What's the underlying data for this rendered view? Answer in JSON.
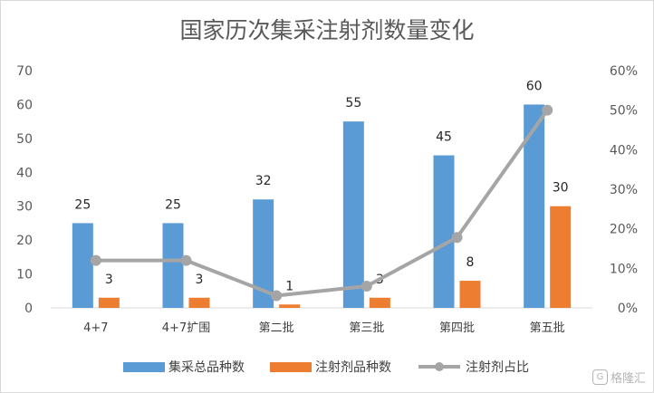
{
  "chart_data": {
    "type": "bar",
    "title": "国家历次集采注射剂数量变化",
    "categories": [
      "4+7",
      "4+7扩围",
      "第二批",
      "第三批",
      "第四批",
      "第五批"
    ],
    "series": [
      {
        "name": "集采总品种数",
        "kind": "bar",
        "axis": "left",
        "color": "#5b9bd5",
        "values": [
          25,
          25,
          32,
          55,
          45,
          60
        ],
        "labels": [
          "25",
          "25",
          "32",
          "55",
          "45",
          "60"
        ]
      },
      {
        "name": "注射剂品种数",
        "kind": "bar",
        "axis": "left",
        "color": "#ed7d31",
        "values": [
          3,
          3,
          1,
          3,
          8,
          30
        ],
        "labels": [
          "3",
          "3",
          "1",
          "3",
          "8",
          "30"
        ]
      },
      {
        "name": "注射剂占比",
        "kind": "line",
        "axis": "right",
        "color": "#a5a5a5",
        "values": [
          12,
          12,
          3.1,
          5.5,
          17.8,
          50
        ]
      }
    ],
    "left_axis": {
      "min": 0,
      "max": 70,
      "ticks": [
        "0",
        "10",
        "20",
        "30",
        "40",
        "50",
        "60",
        "70"
      ]
    },
    "right_axis": {
      "min": 0,
      "max": 60,
      "unit": "%",
      "ticks": [
        "0%",
        "10%",
        "20%",
        "30%",
        "40%",
        "50%",
        "60%"
      ]
    },
    "legend_position": "bottom",
    "grid": false
  },
  "watermark": {
    "icon": "gelonghui-logo-icon",
    "glyph": "G",
    "text": "格隆汇"
  }
}
